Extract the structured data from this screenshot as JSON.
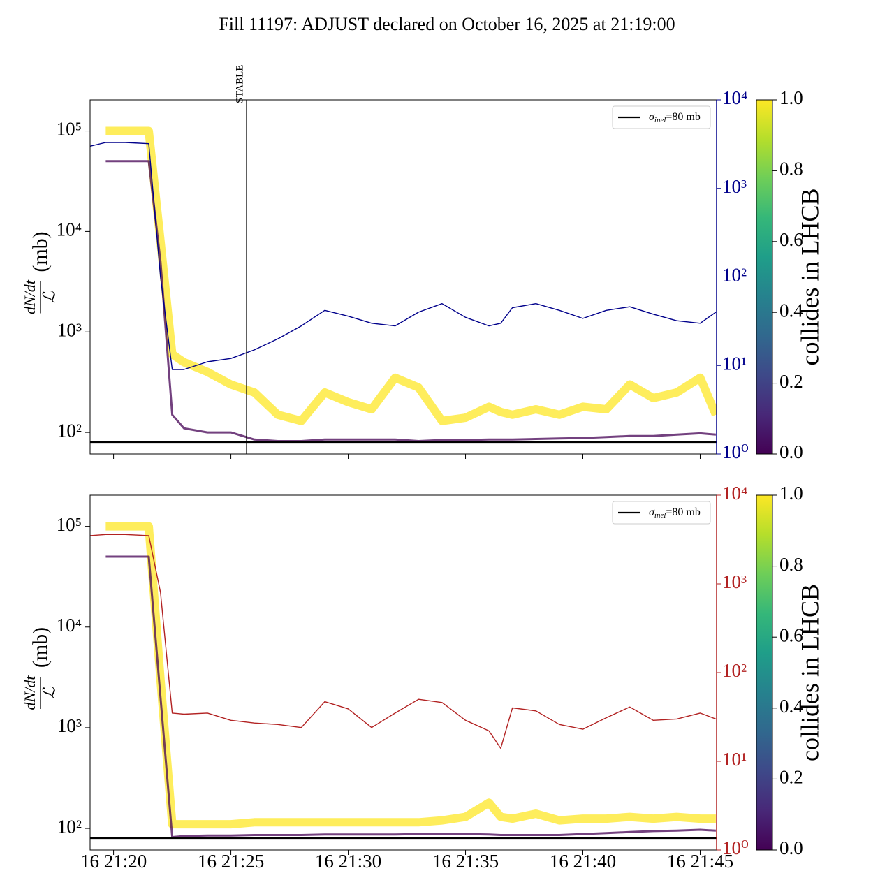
{
  "title": "Fill 11197: ADJUST declared on October 16, 2025 at 21:19:00",
  "chart_data": [
    {
      "type": "line",
      "x": [
        "16 21:19:00",
        "16 21:19:40",
        "16 21:20:30",
        "16 21:21:30",
        "16 21:22:00",
        "16 21:22:30",
        "16 21:23:00",
        "16 21:24:00",
        "16 21:25:00",
        "16 21:26:00",
        "16 21:27:00",
        "16 21:28:00",
        "16 21:29:00",
        "16 21:30:00",
        "16 21:31:00",
        "16 21:32:00",
        "16 21:33:00",
        "16 21:34:00",
        "16 21:35:00",
        "16 21:36:00",
        "16 21:36:30",
        "16 21:37:00",
        "16 21:38:00",
        "16 21:39:00",
        "16 21:40:00",
        "16 21:41:00",
        "16 21:42:00",
        "16 21:43:00",
        "16 21:44:00",
        "16 21:45:00",
        "16 21:45:40"
      ],
      "xlim": [
        "16 21:19:00",
        "16 21:45:42"
      ],
      "log_scale": true,
      "ylim": [
        61,
        204000
      ],
      "yticks": [
        {
          "value": 100,
          "label": "10²"
        },
        {
          "value": 1000,
          "label": "10³"
        },
        {
          "value": 10000,
          "label": "10⁴"
        },
        {
          "value": 100000,
          "label": "10⁵"
        }
      ],
      "y2lim": [
        1,
        10000
      ],
      "y2ticks": [
        {
          "value": 1,
          "label": "10⁰"
        },
        {
          "value": 10,
          "label": "10¹"
        },
        {
          "value": 100,
          "label": "10²"
        },
        {
          "value": 1000,
          "label": "10³"
        },
        {
          "value": 10000,
          "label": "10⁴"
        }
      ],
      "y2color": "#00008b",
      "ylabel_numerator": "dN/dt",
      "ylabel_denominator": "ℒ",
      "ylabel_unit": "(mb)",
      "series": [
        {
          "color": "#fde725",
          "values": [
            null,
            100000,
            100000,
            100000,
            8000,
            600,
            500,
            400,
            300,
            250,
            150,
            130,
            250,
            200,
            170,
            350,
            280,
            130,
            140,
            180,
            160,
            150,
            170,
            150,
            180,
            170,
            300,
            220,
            250,
            350,
            150
          ]
        },
        {
          "color": "#440154",
          "values": [
            null,
            50000,
            50000,
            50000,
            5000,
            150,
            110,
            100,
            100,
            85,
            82,
            82,
            85,
            85,
            85,
            85,
            82,
            84,
            84,
            85,
            85,
            85,
            86,
            87,
            88,
            90,
            92,
            92,
            95,
            98,
            95
          ]
        },
        {
          "color": "#00008b",
          "axis": "y2",
          "values": [
            3000,
            3300,
            3300,
            3200,
            100,
            9,
            9,
            11,
            12,
            15,
            20,
            28,
            42,
            36,
            30,
            28,
            40,
            50,
            35,
            28,
            30,
            45,
            50,
            42,
            34,
            42,
            46,
            38,
            32,
            30,
            40
          ]
        }
      ],
      "reference_line": {
        "value": 80,
        "color": "#000000"
      },
      "legend": {
        "symbol": "σ",
        "subscript": "inel",
        "text": "=80 mb",
        "loc": "upper right"
      },
      "vline": {
        "x": "16 21:25:40",
        "label": "STABLE"
      },
      "colorbar": {
        "label": "collides in LHCB",
        "clim": [
          0,
          1
        ],
        "colors": [
          "#440154",
          "#482878",
          "#3e4989",
          "#31688e",
          "#26828e",
          "#1f9e89",
          "#35b779",
          "#6ece58",
          "#b5de2b",
          "#fde725"
        ],
        "ticks": [
          {
            "value": 0,
            "label": "0.0"
          },
          {
            "value": 0.2,
            "label": "0.2"
          },
          {
            "value": 0.4,
            "label": "0.4"
          },
          {
            "value": 0.6,
            "label": "0.6"
          },
          {
            "value": 0.8,
            "label": "0.8"
          },
          {
            "value": 1,
            "label": "1.0"
          }
        ]
      }
    },
    {
      "type": "line",
      "x": [
        "16 21:19:00",
        "16 21:19:40",
        "16 21:20:30",
        "16 21:21:30",
        "16 21:22:00",
        "16 21:22:30",
        "16 21:23:00",
        "16 21:24:00",
        "16 21:25:00",
        "16 21:26:00",
        "16 21:27:00",
        "16 21:28:00",
        "16 21:29:00",
        "16 21:30:00",
        "16 21:31:00",
        "16 21:32:00",
        "16 21:33:00",
        "16 21:34:00",
        "16 21:35:00",
        "16 21:36:00",
        "16 21:36:30",
        "16 21:37:00",
        "16 21:38:00",
        "16 21:39:00",
        "16 21:40:00",
        "16 21:41:00",
        "16 21:42:00",
        "16 21:43:00",
        "16 21:44:00",
        "16 21:45:00",
        "16 21:45:40"
      ],
      "xlim": [
        "16 21:19:00",
        "16 21:45:42"
      ],
      "xticks": [
        "16 21:20",
        "16 21:25",
        "16 21:30",
        "16 21:35",
        "16 21:40",
        "16 21:45"
      ],
      "log_scale": true,
      "ylim": [
        61,
        204000
      ],
      "yticks": [
        {
          "value": 100,
          "label": "10²"
        },
        {
          "value": 1000,
          "label": "10³"
        },
        {
          "value": 10000,
          "label": "10⁴"
        },
        {
          "value": 100000,
          "label": "10⁵"
        }
      ],
      "y2lim": [
        1,
        10000
      ],
      "y2ticks": [
        {
          "value": 1,
          "label": "10⁰"
        },
        {
          "value": 10,
          "label": "10¹"
        },
        {
          "value": 100,
          "label": "10²"
        },
        {
          "value": 1000,
          "label": "10³"
        },
        {
          "value": 10000,
          "label": "10⁴"
        }
      ],
      "y2color": "#b22222",
      "ylabel_numerator": "dN/dt",
      "ylabel_denominator": "ℒ",
      "ylabel_unit": "(mb)",
      "series": [
        {
          "color": "#fde725",
          "values": [
            null,
            100000,
            100000,
            100000,
            3000,
            110,
            110,
            110,
            110,
            115,
            115,
            115,
            115,
            115,
            115,
            115,
            115,
            120,
            130,
            180,
            130,
            125,
            140,
            120,
            125,
            125,
            130,
            125,
            130,
            125,
            125
          ]
        },
        {
          "color": "#440154",
          "values": [
            null,
            50000,
            50000,
            50000,
            2000,
            82,
            84,
            85,
            85,
            86,
            86,
            86,
            87,
            87,
            87,
            87,
            88,
            88,
            88,
            87,
            86,
            86,
            86,
            86,
            88,
            90,
            92,
            94,
            95,
            97,
            95
          ]
        },
        {
          "color": "#b22222",
          "axis": "y2",
          "values": [
            3500,
            3600,
            3600,
            3500,
            800,
            35,
            34,
            35,
            29,
            27,
            26,
            24,
            47,
            39,
            24,
            35,
            50,
            46,
            29,
            22,
            14,
            40,
            37,
            26,
            23,
            31,
            41,
            29,
            30,
            35,
            30
          ]
        }
      ],
      "reference_line": {
        "value": 80,
        "color": "#000000"
      },
      "legend": {
        "symbol": "σ",
        "subscript": "inel",
        "text": "=80 mb",
        "loc": "upper right"
      },
      "colorbar": {
        "label": "collides in LHCB",
        "clim": [
          0,
          1
        ],
        "colors": [
          "#440154",
          "#482878",
          "#3e4989",
          "#31688e",
          "#26828e",
          "#1f9e89",
          "#35b779",
          "#6ece58",
          "#b5de2b",
          "#fde725"
        ],
        "ticks": [
          {
            "value": 0,
            "label": "0.0"
          },
          {
            "value": 0.2,
            "label": "0.2"
          },
          {
            "value": 0.4,
            "label": "0.4"
          },
          {
            "value": 0.6,
            "label": "0.6"
          },
          {
            "value": 0.8,
            "label": "0.8"
          },
          {
            "value": 1,
            "label": "1.0"
          }
        ]
      }
    }
  ]
}
